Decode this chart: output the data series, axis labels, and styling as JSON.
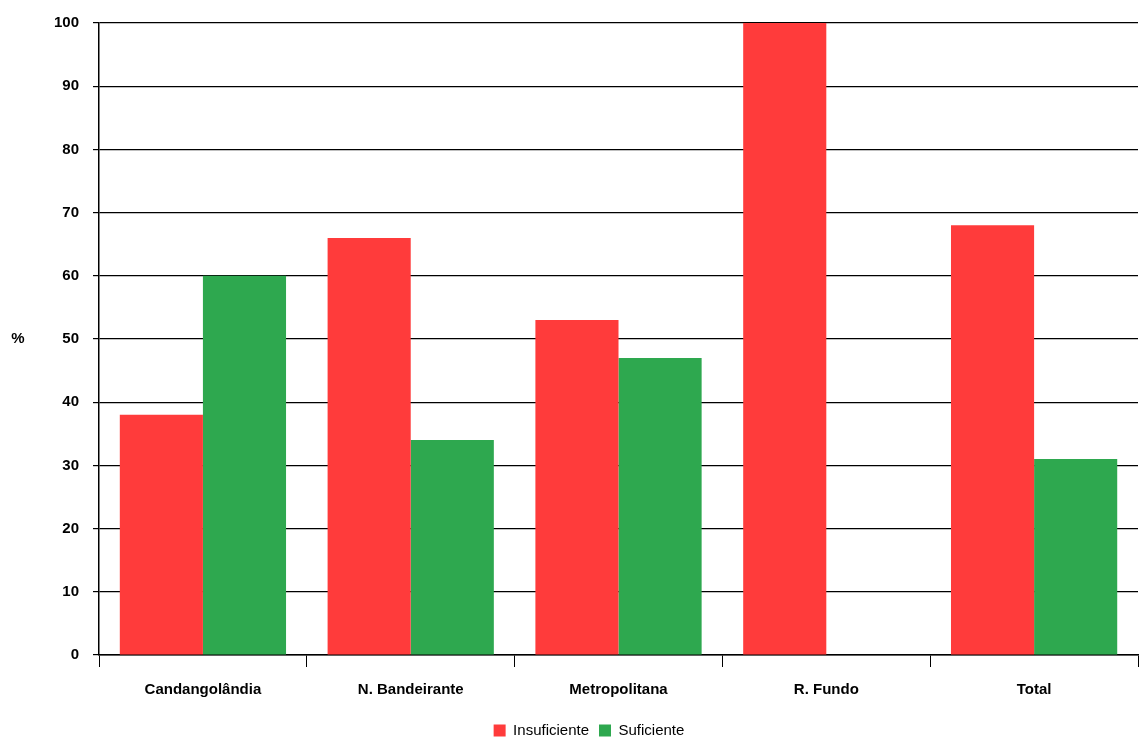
{
  "chart_data": {
    "type": "bar",
    "ylabel": "%",
    "categories": [
      "Candangolândia",
      "N. Bandeirante",
      "Metropolitana",
      "R. Fundo",
      "Total"
    ],
    "series": [
      {
        "name": "Insuficiente",
        "color": "#ff3b3b",
        "values": [
          38,
          66,
          53,
          100,
          68
        ]
      },
      {
        "name": "Suficiente",
        "color": "#2ea84f",
        "values": [
          60,
          34,
          47,
          0,
          31
        ]
      }
    ],
    "ylim": [
      0,
      100
    ],
    "yticks": [
      0,
      10,
      20,
      30,
      40,
      50,
      60,
      70,
      80,
      90,
      100
    ],
    "grid": "y",
    "legend": "bottom"
  }
}
